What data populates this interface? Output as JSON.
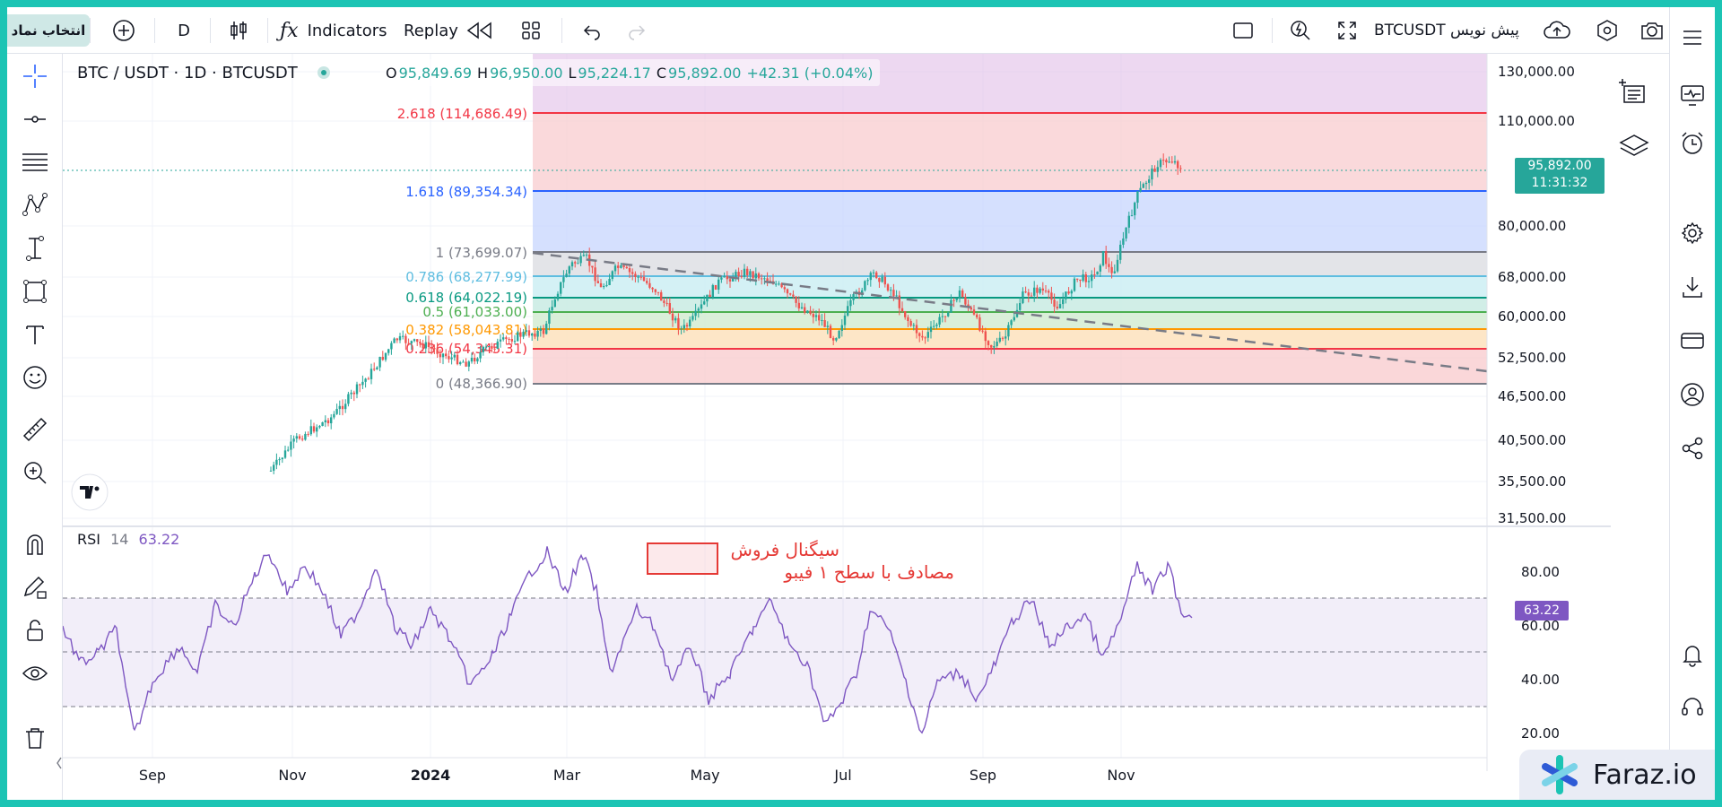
{
  "toolbar": {
    "symbol_search": "انتخاب نماد",
    "interval": "D",
    "indicators": "Indicators",
    "replay": "Replay",
    "symbol_title": "BTCUSDT پیش نویس"
  },
  "chart": {
    "title": "BTC / USDT · 1D · BTCUSDT",
    "ohlc": {
      "o_label": "O",
      "o": "95,849.69",
      "h_label": "H",
      "h": "96,950.00",
      "l_label": "L",
      "l": "95,224.17",
      "c_label": "C",
      "c": "95,892.00",
      "change": "+42.31 (+0.04%)"
    },
    "current_price": "95,892.00",
    "countdown": "11:31:32",
    "price_axis": [
      "130,000.00",
      "110,000.00",
      "80,000.00",
      "68,000.00",
      "60,000.00",
      "52,500.00",
      "46,500.00",
      "40,500.00",
      "35,500.00",
      "31,500.00"
    ],
    "time_axis": [
      "Sep",
      "Nov",
      "2024",
      "Mar",
      "May",
      "Jul",
      "Sep",
      "Nov"
    ],
    "fib_levels": [
      {
        "label": "2.618 (114,686.49)",
        "color": "#f23645"
      },
      {
        "label": "1.618 (89,354.34)",
        "color": "#2962ff"
      },
      {
        "label": "1 (73,699.07)",
        "color": "#787b86"
      },
      {
        "label": "0.786 (68,277.99)",
        "color": "#5ebde0"
      },
      {
        "label": "0.618 (64,022.19)",
        "color": "#089981"
      },
      {
        "label": "0.5 (61,033.00)",
        "color": "#4caf50"
      },
      {
        "label": "0.382 (58,043.81)",
        "color": "#ff9800"
      },
      {
        "label": "0.236 (54,345.31)",
        "color": "#f23645"
      },
      {
        "label": "0 (48,366.90)",
        "color": "#787b86"
      }
    ]
  },
  "rsi": {
    "name": "RSI",
    "length": "14",
    "value": "63.22",
    "axis": [
      "80.00",
      "60.00",
      "40.00",
      "20.00"
    ],
    "annotation_line1": "سیگنال فروش",
    "annotation_line2": "مصادف با سطح ۱ فیبو"
  },
  "branding": {
    "logo_text": "Faraz.io"
  },
  "colors": {
    "up": "#26a69a",
    "down": "#ef5350",
    "rsi": "#7e57c2",
    "accent": "#2962ff"
  }
}
